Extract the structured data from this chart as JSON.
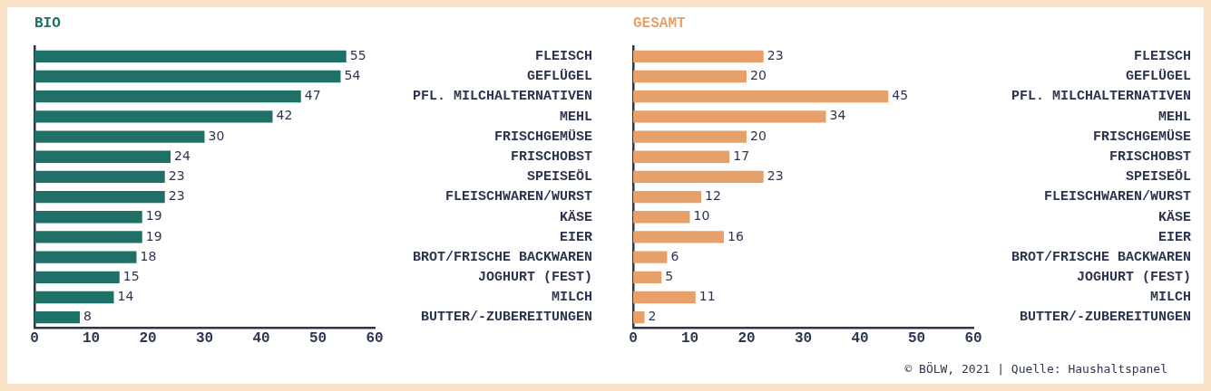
{
  "chart_data": [
    {
      "type": "bar",
      "orientation": "horizontal",
      "title": "BIO",
      "categories": [
        "FLEISCH",
        "GEFLÜGEL",
        "PFL. MILCHALTERNATIVEN",
        "MEHL",
        "FRISCHGEMÜSE",
        "FRISCHOBST",
        "SPEISEÖL",
        "FLEISCHWAREN/WURST",
        "KÄSE",
        "EIER",
        "BROT/FRISCHE BACKWAREN",
        "JOGHURT (FEST)",
        "MILCH",
        "BUTTER/-ZUBEREITUNGEN"
      ],
      "values": [
        55,
        54,
        47,
        42,
        30,
        24,
        23,
        23,
        19,
        19,
        18,
        15,
        14,
        8
      ],
      "color": "#1f7067",
      "xlim": [
        0,
        60
      ],
      "xticks": [
        0,
        10,
        20,
        30,
        40,
        50,
        60
      ],
      "data_labels": true,
      "grid": false,
      "legend": false
    },
    {
      "type": "bar",
      "orientation": "horizontal",
      "title": "GESAMT",
      "categories": [
        "FLEISCH",
        "GEFLÜGEL",
        "PFL. MILCHALTERNATIVEN",
        "MEHL",
        "FRISCHGEMÜSE",
        "FRISCHOBST",
        "SPEISEÖL",
        "FLEISCHWAREN/WURST",
        "KÄSE",
        "EIER",
        "BROT/FRISCHE BACKWAREN",
        "JOGHURT (FEST)",
        "MILCH",
        "BUTTER/-ZUBEREITUNGEN"
      ],
      "values": [
        23,
        20,
        45,
        34,
        20,
        17,
        23,
        12,
        10,
        16,
        6,
        5,
        11,
        2
      ],
      "color": "#e8a06a",
      "xlim": [
        0,
        60
      ],
      "xticks": [
        0,
        10,
        20,
        30,
        40,
        50,
        60
      ],
      "data_labels": true,
      "grid": false,
      "legend": false,
      "annotations": [
        "© BÖLW, 2021 | Quelle: Haushaltspanel"
      ]
    }
  ]
}
